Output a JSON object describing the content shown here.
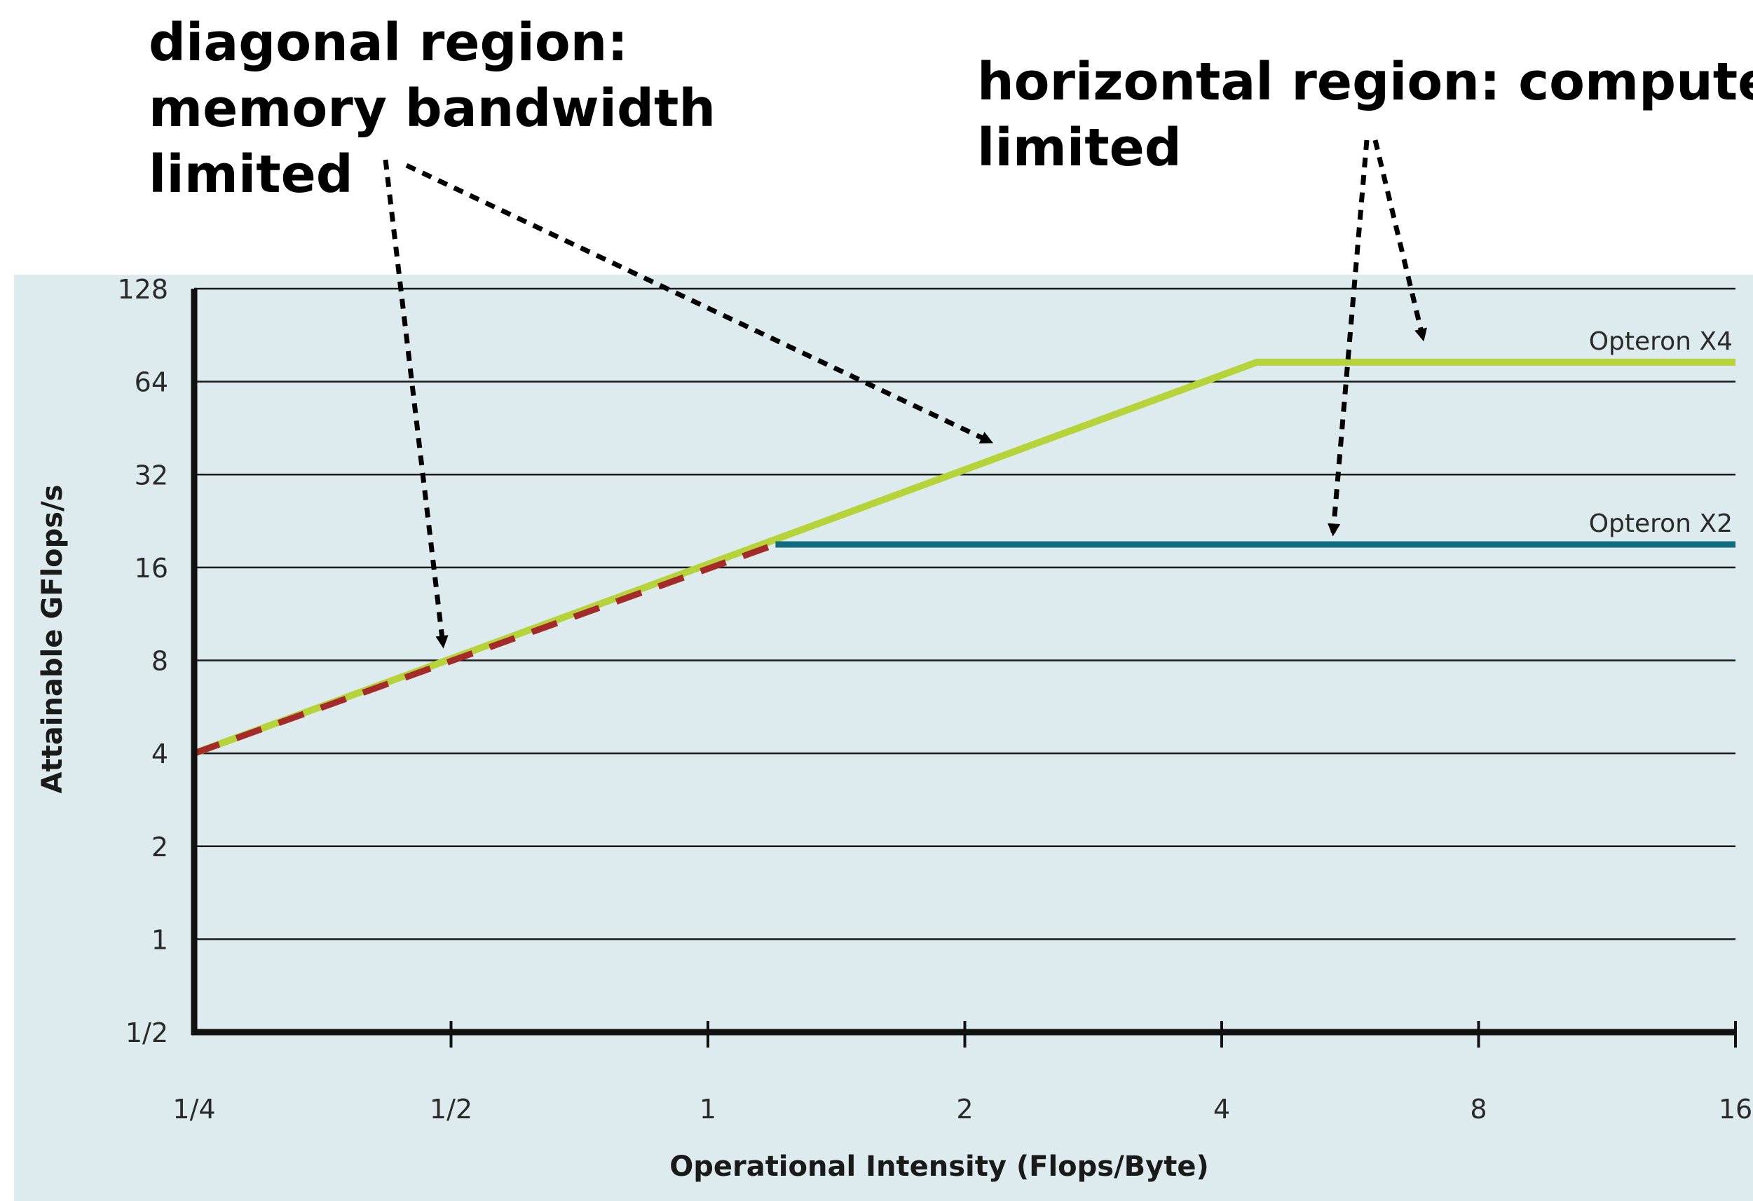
{
  "annotations": {
    "diagonal": [
      "diagonal region:",
      "memory bandwidth",
      "limited"
    ],
    "horizontal": [
      "horizontal region: compute",
      "limited"
    ]
  },
  "colors": {
    "background": "#ddebee",
    "grid": "#1a1a1a",
    "axis": "#111111",
    "opteron_x4": "#b7d33a",
    "opteron_x2": "#0f6b80",
    "dashed_overlay": "#a52a2a",
    "tick_text": "#2a2a2a"
  },
  "chart_data": {
    "type": "line",
    "title": "",
    "xlabel": "Operational Intensity (Flops/Byte)",
    "ylabel": "Attainable GFlops/s",
    "x_scale": "log2",
    "y_scale": "log2",
    "xlim": [
      0.25,
      16
    ],
    "ylim": [
      0.5,
      128
    ],
    "x_ticks": [
      {
        "value": 0.25,
        "label": "1/4"
      },
      {
        "value": 0.5,
        "label": "1/2"
      },
      {
        "value": 1,
        "label": "1"
      },
      {
        "value": 2,
        "label": "2"
      },
      {
        "value": 4,
        "label": "4"
      },
      {
        "value": 8,
        "label": "8"
      },
      {
        "value": 16,
        "label": "16"
      }
    ],
    "y_ticks": [
      {
        "value": 0.5,
        "label": "1/2"
      },
      {
        "value": 1,
        "label": "1"
      },
      {
        "value": 2,
        "label": "2"
      },
      {
        "value": 4,
        "label": "4"
      },
      {
        "value": 8,
        "label": "8"
      },
      {
        "value": 16,
        "label": "16"
      },
      {
        "value": 32,
        "label": "32"
      },
      {
        "value": 64,
        "label": "64"
      },
      {
        "value": 128,
        "label": "128"
      }
    ],
    "grid": true,
    "series": [
      {
        "name": "Opteron X4",
        "x": [
          0.25,
          4.4,
          16
        ],
        "y": [
          4,
          74,
          74
        ]
      },
      {
        "name": "Opteron X2",
        "x": [
          0.25,
          1.2,
          16
        ],
        "y": [
          4,
          19,
          19
        ]
      }
    ]
  }
}
